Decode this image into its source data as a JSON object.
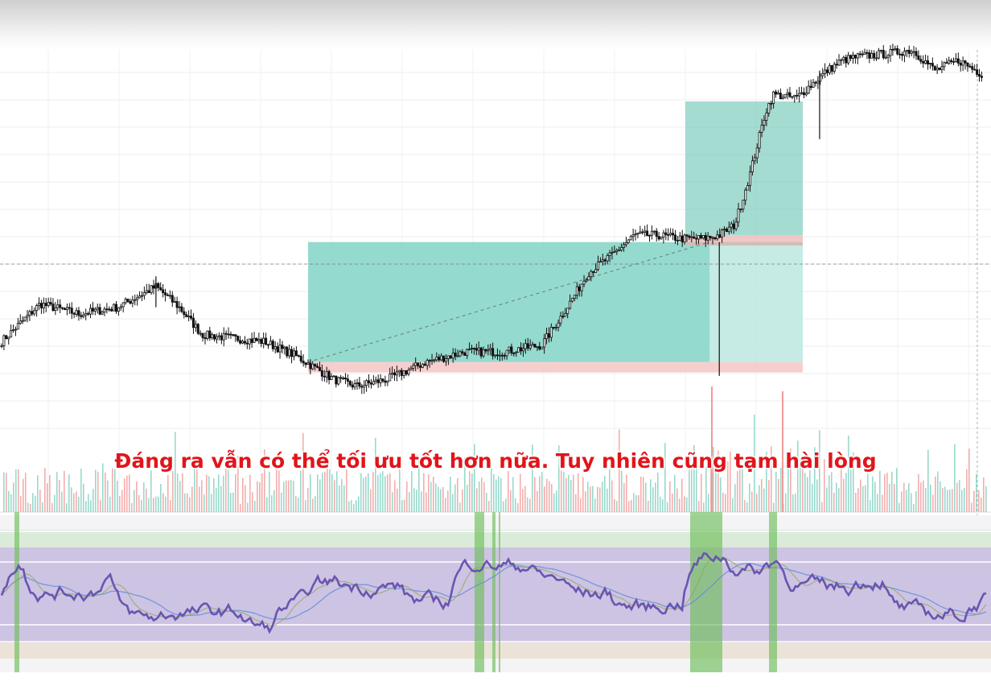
{
  "caption": "Đáng ra vẫn có thể tối ưu tốt hơn nữa. Tuy nhiên cũng tạm hài lòng",
  "colors": {
    "candle": "#111111",
    "profit_zone": "#82d3c6",
    "stop_zone": "#f6c5c5",
    "rsi_line": "#6a55b0",
    "rsi_band": "#b9a9d8",
    "signal_green": "#6fbf5a",
    "volume_up": "#7fcfbf",
    "volume_down": "#f19a9a"
  },
  "chart_data": [
    {
      "type": "candlestick",
      "title": "",
      "xlabel": "",
      "ylabel": "",
      "grid": true,
      "ylim": [
        0,
        100
      ],
      "price_path_keypoints": [
        {
          "x": 0,
          "y": 42
        },
        {
          "x": 10,
          "y": 64
        },
        {
          "x": 20,
          "y": 58
        },
        {
          "x": 30,
          "y": 62
        },
        {
          "x": 40,
          "y": 74
        },
        {
          "x": 46,
          "y": 62
        },
        {
          "x": 52,
          "y": 46
        },
        {
          "x": 60,
          "y": 44
        },
        {
          "x": 68,
          "y": 42
        },
        {
          "x": 76,
          "y": 34
        },
        {
          "x": 86,
          "y": 20
        },
        {
          "x": 92,
          "y": 16
        },
        {
          "x": 100,
          "y": 20
        },
        {
          "x": 110,
          "y": 30
        },
        {
          "x": 120,
          "y": 36
        },
        {
          "x": 130,
          "y": 36
        },
        {
          "x": 140,
          "y": 40
        },
        {
          "x": 146,
          "y": 60
        },
        {
          "x": 152,
          "y": 82
        },
        {
          "x": 158,
          "y": 92
        },
        {
          "x": 164,
          "y": 104
        },
        {
          "x": 170,
          "y": 104
        },
        {
          "x": 176,
          "y": 102
        },
        {
          "x": 182,
          "y": 102
        },
        {
          "x": 186,
          "y": 104
        },
        {
          "x": 190,
          "y": 110
        },
        {
          "x": 194,
          "y": 140
        },
        {
          "x": 198,
          "y": 176
        },
        {
          "x": 200,
          "y": 186
        },
        {
          "x": 206,
          "y": 184
        },
        {
          "x": 210,
          "y": 192
        },
        {
          "x": 214,
          "y": 200
        },
        {
          "x": 218,
          "y": 206
        },
        {
          "x": 222,
          "y": 208
        },
        {
          "x": 230,
          "y": 210
        },
        {
          "x": 236,
          "y": 212
        },
        {
          "x": 242,
          "y": 200
        },
        {
          "x": 248,
          "y": 206
        },
        {
          "x": 254,
          "y": 198
        }
      ],
      "long_position": {
        "entry": 30,
        "target": 100,
        "stop": 24
      },
      "second_position": {
        "entry": 104,
        "target": 182,
        "stop": 98
      }
    },
    {
      "type": "line",
      "title": "",
      "series_count": 3,
      "levels": [
        80,
        70,
        30,
        20
      ],
      "ylim": [
        0,
        100
      ]
    }
  ]
}
